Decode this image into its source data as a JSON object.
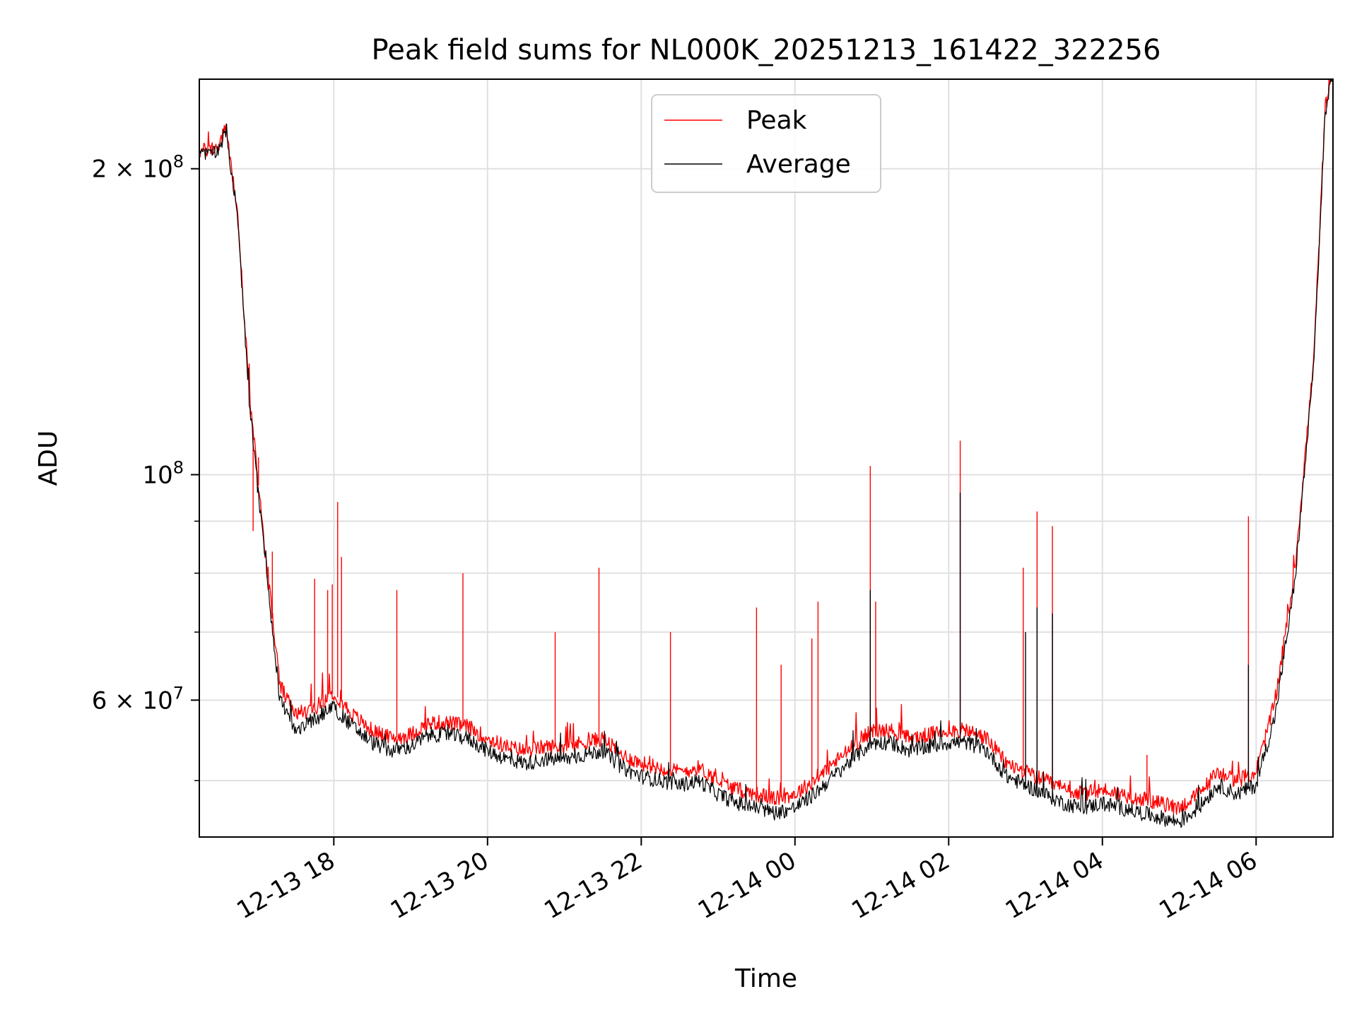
{
  "chart_data": {
    "type": "line",
    "title": "Peak field sums for NL000K_20251213_161422_322256",
    "xlabel": "Time",
    "ylabel": "ADU",
    "yscale": "log",
    "grid": true,
    "legend_placement": "top-center",
    "xlim_hours_from_1213_00": [
      16.25,
      31.0
    ],
    "ylim": [
      44000000,
      245000000
    ],
    "x_ticks": [
      {
        "hours": 18,
        "label": "12-13 18"
      },
      {
        "hours": 20,
        "label": "12-13 20"
      },
      {
        "hours": 22,
        "label": "12-13 22"
      },
      {
        "hours": 24,
        "label": "12-14 00"
      },
      {
        "hours": 26,
        "label": "12-14 02"
      },
      {
        "hours": 28,
        "label": "12-14 04"
      },
      {
        "hours": 30,
        "label": "12-14 06"
      }
    ],
    "y_ticks_major": [
      {
        "value": 60000000,
        "label": "6 × 10⁷",
        "mantissa": "6",
        "exp": "7"
      },
      {
        "value": 100000000,
        "label": "10⁸",
        "mantissa": "",
        "exp": "8"
      },
      {
        "value": 200000000,
        "label": "2 × 10⁸",
        "mantissa": "2",
        "exp": "8"
      }
    ],
    "y_ticks_minor": [
      50000000,
      70000000,
      80000000,
      90000000
    ],
    "series": [
      {
        "name": "Peak",
        "color": "#ff0000",
        "x_hours": [
          16.25,
          16.5,
          16.6,
          16.75,
          16.9,
          17.1,
          17.3,
          17.5,
          17.75,
          18.0,
          18.25,
          18.5,
          18.75,
          19.0,
          19.25,
          19.5,
          19.75,
          20.0,
          20.25,
          20.5,
          20.75,
          21.0,
          21.25,
          21.5,
          21.75,
          22.0,
          22.25,
          22.5,
          22.75,
          23.0,
          23.25,
          23.5,
          23.75,
          24.0,
          24.25,
          24.5,
          24.75,
          25.0,
          25.25,
          25.5,
          25.75,
          26.0,
          26.25,
          26.5,
          26.75,
          27.0,
          27.25,
          27.5,
          27.75,
          28.0,
          28.25,
          28.5,
          28.75,
          29.0,
          29.25,
          29.5,
          29.75,
          30.0,
          30.25,
          30.5,
          30.75,
          30.9,
          31.0
        ],
        "values": [
          208000000,
          210000000,
          220000000,
          180000000,
          120000000,
          85000000,
          62000000,
          58000000,
          59000000,
          61000000,
          58000000,
          56000000,
          55000000,
          55500000,
          57000000,
          57000000,
          56500000,
          55000000,
          54000000,
          53500000,
          54000000,
          54000000,
          54500000,
          55000000,
          53000000,
          52000000,
          51500000,
          51000000,
          51500000,
          50000000,
          49000000,
          48500000,
          48000000,
          48500000,
          50000000,
          52000000,
          54000000,
          56000000,
          56000000,
          55000000,
          55500000,
          56000000,
          56000000,
          55000000,
          52000000,
          51000000,
          50000000,
          49000000,
          48500000,
          49000000,
          48500000,
          48000000,
          47500000,
          47000000,
          48500000,
          51000000,
          50000000,
          51000000,
          60000000,
          80000000,
          130000000,
          230000000,
          250000000
        ],
        "spikes": [
          {
            "x_hours": 16.95,
            "value": 88000000
          },
          {
            "x_hours": 17.02,
            "value": 104000000
          },
          {
            "x_hours": 17.2,
            "value": 84000000
          },
          {
            "x_hours": 17.75,
            "value": 79000000
          },
          {
            "x_hours": 17.92,
            "value": 77000000
          },
          {
            "x_hours": 17.98,
            "value": 78000000
          },
          {
            "x_hours": 18.05,
            "value": 94000000
          },
          {
            "x_hours": 18.1,
            "value": 83000000
          },
          {
            "x_hours": 18.82,
            "value": 77000000
          },
          {
            "x_hours": 19.68,
            "value": 80000000
          },
          {
            "x_hours": 20.88,
            "value": 70000000
          },
          {
            "x_hours": 21.45,
            "value": 81000000
          },
          {
            "x_hours": 22.38,
            "value": 70000000
          },
          {
            "x_hours": 23.5,
            "value": 74000000
          },
          {
            "x_hours": 23.82,
            "value": 65000000
          },
          {
            "x_hours": 24.22,
            "value": 69000000
          },
          {
            "x_hours": 24.3,
            "value": 75000000
          },
          {
            "x_hours": 24.98,
            "value": 102000000
          },
          {
            "x_hours": 25.05,
            "value": 75000000
          },
          {
            "x_hours": 26.15,
            "value": 108000000
          },
          {
            "x_hours": 26.97,
            "value": 81000000
          },
          {
            "x_hours": 27.15,
            "value": 92000000
          },
          {
            "x_hours": 27.35,
            "value": 89000000
          },
          {
            "x_hours": 28.58,
            "value": 53000000
          },
          {
            "x_hours": 29.9,
            "value": 91000000
          }
        ]
      },
      {
        "name": "Average",
        "color": "#000000",
        "x_hours": [
          16.25,
          16.5,
          16.6,
          16.75,
          16.9,
          17.1,
          17.3,
          17.5,
          17.75,
          18.0,
          18.25,
          18.5,
          18.75,
          19.0,
          19.25,
          19.5,
          19.75,
          20.0,
          20.25,
          20.5,
          20.75,
          21.0,
          21.25,
          21.5,
          21.75,
          22.0,
          22.25,
          22.5,
          22.75,
          23.0,
          23.25,
          23.5,
          23.75,
          24.0,
          24.25,
          24.5,
          24.75,
          25.0,
          25.25,
          25.5,
          25.75,
          26.0,
          26.25,
          26.5,
          26.75,
          27.0,
          27.25,
          27.5,
          27.75,
          28.0,
          28.25,
          28.5,
          28.75,
          29.0,
          29.25,
          29.5,
          29.75,
          30.0,
          30.25,
          30.5,
          30.75,
          30.9,
          31.0
        ],
        "values": [
          206000000,
          208000000,
          219000000,
          178000000,
          118000000,
          83000000,
          60000000,
          56000000,
          57500000,
          59000000,
          56500000,
          54500000,
          53500000,
          54000000,
          55500000,
          55500000,
          55000000,
          53500000,
          52500000,
          52000000,
          52500000,
          52500000,
          53000000,
          53500000,
          51500000,
          50500000,
          50000000,
          49500000,
          50000000,
          48500000,
          47500000,
          47000000,
          46500000,
          47000000,
          48500000,
          50500000,
          52500000,
          54500000,
          54500000,
          53500000,
          54000000,
          54500000,
          54500000,
          53500000,
          50500000,
          49500000,
          48500000,
          47500000,
          47000000,
          47500000,
          47000000,
          46500000,
          46000000,
          45500000,
          47000000,
          49500000,
          48500000,
          49500000,
          58000000,
          78000000,
          128000000,
          228000000,
          248000000
        ],
        "spikes": [
          {
            "x_hours": 26.15,
            "value": 96000000
          },
          {
            "x_hours": 24.98,
            "value": 77000000
          },
          {
            "x_hours": 27.15,
            "value": 74000000
          },
          {
            "x_hours": 27.0,
            "value": 70000000
          },
          {
            "x_hours": 27.35,
            "value": 73000000
          },
          {
            "x_hours": 29.9,
            "value": 65000000
          }
        ]
      }
    ]
  }
}
